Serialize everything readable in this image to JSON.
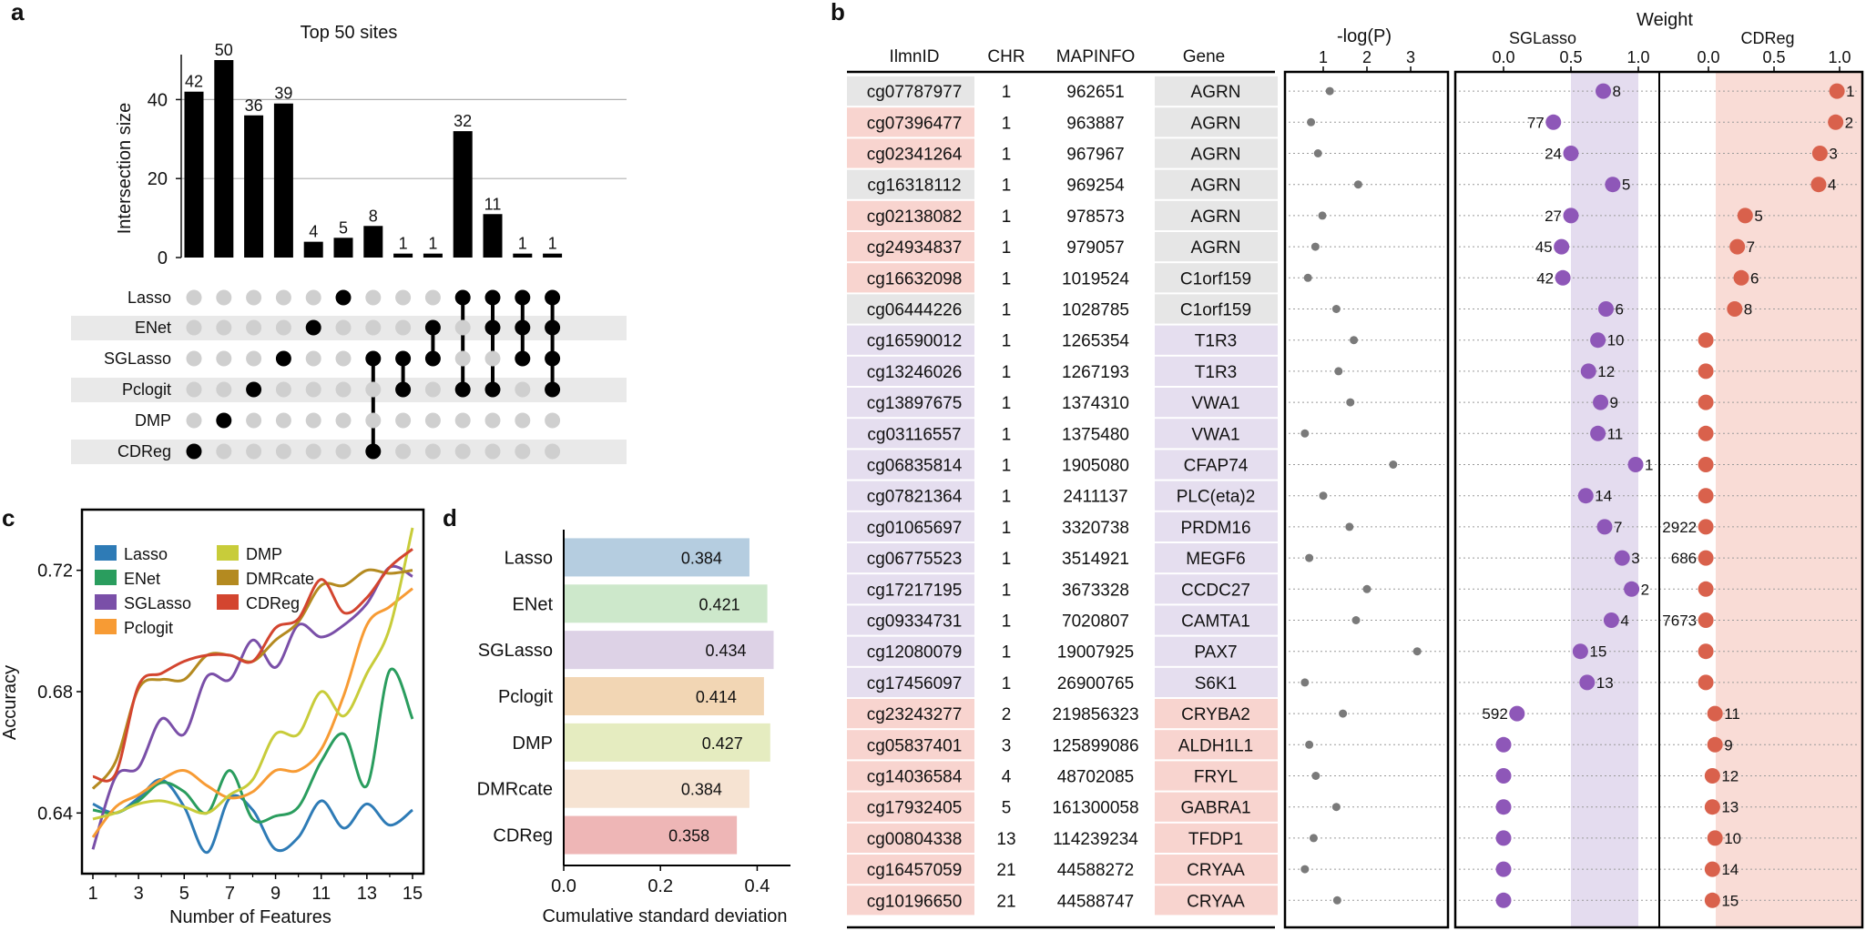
{
  "panels": {
    "a": "a",
    "b": "b",
    "c": "c",
    "d": "d"
  },
  "colors": {
    "lasso": "#2e7bb6",
    "enet": "#2a9d5e",
    "sglasso": "#7a4fa8",
    "pclogit": "#f79b34",
    "dmp": "#c8cc3a",
    "dmrcate": "#b48a20",
    "cdreg": "#d3452f",
    "dot_gray": "#7a7a7a",
    "sg_dot": "#8e57b8",
    "cd_dot": "#d9614c",
    "band_sg": "#e4dcef",
    "band_cd": "#f9dcd6",
    "row_pink": "#f8d4cf",
    "row_gray": "#e6e6e6",
    "row_purple": "#e5deef"
  },
  "chart_data": [
    {
      "type": "bar",
      "panel": "a",
      "title": "Top 50 sites",
      "ylabel": "Intersection size",
      "ylim": [
        0,
        50
      ],
      "yticks": [
        0,
        20,
        40
      ],
      "values": [
        42,
        50,
        36,
        39,
        4,
        5,
        8,
        1,
        1,
        32,
        11,
        1,
        1
      ],
      "sets": [
        "Lasso",
        "ENet",
        "SGLasso",
        "Pclogit",
        "DMP",
        "CDReg"
      ],
      "membership": [
        [
          "CDReg"
        ],
        [
          "DMP"
        ],
        [
          "Pclogit"
        ],
        [
          "SGLasso"
        ],
        [
          "ENet"
        ],
        [
          "Lasso"
        ],
        [
          "SGLasso",
          "CDReg"
        ],
        [
          "SGLasso",
          "Pclogit"
        ],
        [
          "ENet",
          "SGLasso"
        ],
        [
          "Lasso",
          "Pclogit"
        ],
        [
          "Lasso",
          "ENet",
          "Pclogit"
        ],
        [
          "Lasso",
          "ENet",
          "SGLasso"
        ],
        [
          "Lasso",
          "ENet",
          "SGLasso",
          "Pclogit"
        ]
      ]
    },
    {
      "type": "line",
      "panel": "c",
      "xlabel": "Number of Features",
      "ylabel": "Accuracy",
      "xlim": [
        1,
        15
      ],
      "ylim": [
        0.62,
        0.74
      ],
      "xticks": [
        1,
        3,
        5,
        7,
        9,
        11,
        13,
        15
      ],
      "yticks": [
        0.64,
        0.68,
        0.72
      ],
      "series": [
        {
          "name": "Lasso",
          "color_key": "lasso",
          "x": [
            1,
            2,
            3,
            4,
            5,
            6,
            7,
            8,
            9,
            10,
            11,
            12,
            13,
            14,
            15
          ],
          "y": [
            0.643,
            0.64,
            0.645,
            0.651,
            0.642,
            0.627,
            0.645,
            0.641,
            0.628,
            0.632,
            0.644,
            0.635,
            0.643,
            0.636,
            0.641
          ]
        },
        {
          "name": "ENet",
          "color_key": "enet",
          "x": [
            1,
            2,
            3,
            4,
            5,
            6,
            7,
            8,
            9,
            10,
            11,
            12,
            13,
            14,
            15
          ],
          "y": [
            0.641,
            0.64,
            0.644,
            0.65,
            0.647,
            0.64,
            0.654,
            0.638,
            0.639,
            0.642,
            0.657,
            0.666,
            0.649,
            0.687,
            0.671
          ]
        },
        {
          "name": "SGLasso",
          "color_key": "sglasso",
          "x": [
            1,
            2,
            3,
            4,
            5,
            6,
            7,
            8,
            9,
            10,
            11,
            12,
            13,
            14,
            15
          ],
          "y": [
            0.628,
            0.652,
            0.655,
            0.671,
            0.666,
            0.685,
            0.684,
            0.697,
            0.688,
            0.702,
            0.698,
            0.702,
            0.709,
            0.721,
            0.718
          ]
        },
        {
          "name": "Pclogit",
          "color_key": "pclogit",
          "x": [
            1,
            2,
            3,
            4,
            5,
            6,
            7,
            8,
            9,
            10,
            11,
            12,
            13,
            14,
            15
          ],
          "y": [
            0.632,
            0.642,
            0.646,
            0.651,
            0.654,
            0.649,
            0.645,
            0.647,
            0.654,
            0.654,
            0.661,
            0.679,
            0.702,
            0.708,
            0.714
          ]
        },
        {
          "name": "DMP",
          "color_key": "dmp",
          "x": [
            1,
            2,
            3,
            4,
            5,
            6,
            7,
            8,
            9,
            10,
            11,
            12,
            13,
            14,
            15
          ],
          "y": [
            0.638,
            0.64,
            0.643,
            0.644,
            0.642,
            0.64,
            0.646,
            0.651,
            0.666,
            0.666,
            0.68,
            0.672,
            0.686,
            0.701,
            0.734
          ]
        },
        {
          "name": "DMRcate",
          "color_key": "dmrcate",
          "x": [
            1,
            2,
            3,
            4,
            5,
            6,
            7,
            8,
            9,
            10,
            11,
            12,
            13,
            14,
            15
          ],
          "y": [
            0.648,
            0.657,
            0.681,
            0.684,
            0.684,
            0.692,
            0.692,
            0.69,
            0.697,
            0.703,
            0.715,
            0.715,
            0.72,
            0.719,
            0.72
          ]
        },
        {
          "name": "CDReg",
          "color_key": "cdreg",
          "x": [
            1,
            2,
            3,
            4,
            5,
            6,
            7,
            8,
            9,
            10,
            11,
            12,
            13,
            14,
            15
          ],
          "y": [
            0.652,
            0.653,
            0.682,
            0.686,
            0.69,
            0.692,
            0.692,
            0.69,
            0.701,
            0.704,
            0.717,
            0.706,
            0.711,
            0.721,
            0.727
          ]
        }
      ]
    },
    {
      "type": "bar",
      "panel": "d",
      "orientation": "horizontal",
      "xlabel": "Cumulative standard deviation",
      "xlim": [
        0,
        0.45
      ],
      "xticks": [
        "0.0",
        "0.2",
        "0.4"
      ],
      "categories": [
        "Lasso",
        "ENet",
        "SGLasso",
        "Pclogit",
        "DMP",
        "DMRcate",
        "CDReg"
      ],
      "values": [
        0.384,
        0.421,
        0.434,
        0.414,
        0.427,
        0.384,
        0.358
      ],
      "labels": [
        "0.384",
        "0.421",
        "0.434",
        "0.414",
        "0.427",
        "0.384",
        "0.358"
      ],
      "bar_colors": [
        "#b5cde0",
        "#cde8cb",
        "#ddd2e6",
        "#f2d6b4",
        "#e5ecc0",
        "#f6e3d2",
        "#eeb6b6"
      ]
    },
    {
      "type": "table",
      "panel": "b",
      "columns": [
        "IlmnID",
        "CHR",
        "MAPINFO",
        "Gene"
      ],
      "plot_headers": {
        "logp": "-log(P)",
        "weight": "Weight",
        "sglasso": "SGLasso",
        "cdreg": "CDReg"
      },
      "logp_ticks": [
        1,
        2,
        3
      ],
      "sg_ticks": [
        "0.0",
        "0.5",
        "1.0"
      ],
      "cd_ticks": [
        "0.0",
        "0.5",
        "1.0"
      ],
      "rows": [
        {
          "id": "cg07787977",
          "chr": "1",
          "map": "962651",
          "gene": "AGRN",
          "id_bg": "gray",
          "gene_bg": "gray",
          "logp": 1.15,
          "sg": 0.74,
          "sg_rank": "8",
          "sg_side": "right",
          "cd": 0.98,
          "cd_rank": "1",
          "cd_side": "right"
        },
        {
          "id": "cg07396477",
          "chr": "1",
          "map": "963887",
          "gene": "AGRN",
          "id_bg": "pink",
          "gene_bg": "gray",
          "logp": 0.72,
          "sg": 0.37,
          "sg_rank": "77",
          "sg_side": "left",
          "cd": 0.97,
          "cd_rank": "2",
          "cd_side": "right"
        },
        {
          "id": "cg02341264",
          "chr": "1",
          "map": "967967",
          "gene": "AGRN",
          "id_bg": "pink",
          "gene_bg": "gray",
          "logp": 0.88,
          "sg": 0.5,
          "sg_rank": "24",
          "sg_side": "left",
          "cd": 0.85,
          "cd_rank": "3",
          "cd_side": "right"
        },
        {
          "id": "cg16318112",
          "chr": "1",
          "map": "969254",
          "gene": "AGRN",
          "id_bg": "gray",
          "gene_bg": "gray",
          "logp": 1.8,
          "sg": 0.81,
          "sg_rank": "5",
          "sg_side": "right",
          "cd": 0.84,
          "cd_rank": "4",
          "cd_side": "right"
        },
        {
          "id": "cg02138082",
          "chr": "1",
          "map": "978573",
          "gene": "AGRN",
          "id_bg": "pink",
          "gene_bg": "gray",
          "logp": 0.98,
          "sg": 0.5,
          "sg_rank": "27",
          "sg_side": "left",
          "cd": 0.28,
          "cd_rank": "5",
          "cd_side": "right"
        },
        {
          "id": "cg24934837",
          "chr": "1",
          "map": "979057",
          "gene": "AGRN",
          "id_bg": "pink",
          "gene_bg": "gray",
          "logp": 0.82,
          "sg": 0.43,
          "sg_rank": "45",
          "sg_side": "left",
          "cd": 0.22,
          "cd_rank": "7",
          "cd_side": "right"
        },
        {
          "id": "cg16632098",
          "chr": "1",
          "map": "1019524",
          "gene": "C1orf159",
          "id_bg": "pink",
          "gene_bg": "gray",
          "logp": 0.65,
          "sg": 0.44,
          "sg_rank": "42",
          "sg_side": "left",
          "cd": 0.25,
          "cd_rank": "6",
          "cd_side": "right"
        },
        {
          "id": "cg06444226",
          "chr": "1",
          "map": "1028785",
          "gene": "C1orf159",
          "id_bg": "gray",
          "gene_bg": "gray",
          "logp": 1.3,
          "sg": 0.76,
          "sg_rank": "6",
          "sg_side": "right",
          "cd": 0.2,
          "cd_rank": "8",
          "cd_side": "right"
        },
        {
          "id": "cg16590012",
          "chr": "1",
          "map": "1265354",
          "gene": "T1R3",
          "id_bg": "purple",
          "gene_bg": "purple",
          "logp": 1.7,
          "sg": 0.7,
          "sg_rank": "10",
          "sg_side": "right",
          "cd": -0.02,
          "cd_rank": "",
          "cd_side": "right"
        },
        {
          "id": "cg13246026",
          "chr": "1",
          "map": "1267193",
          "gene": "T1R3",
          "id_bg": "purple",
          "gene_bg": "purple",
          "logp": 1.35,
          "sg": 0.63,
          "sg_rank": "12",
          "sg_side": "right",
          "cd": -0.02,
          "cd_rank": "",
          "cd_side": "right"
        },
        {
          "id": "cg13897675",
          "chr": "1",
          "map": "1374310",
          "gene": "VWA1",
          "id_bg": "purple",
          "gene_bg": "purple",
          "logp": 1.62,
          "sg": 0.72,
          "sg_rank": "9",
          "sg_side": "right",
          "cd": -0.02,
          "cd_rank": "",
          "cd_side": "right"
        },
        {
          "id": "cg03116557",
          "chr": "1",
          "map": "1375480",
          "gene": "VWA1",
          "id_bg": "purple",
          "gene_bg": "purple",
          "logp": 0.58,
          "sg": 0.7,
          "sg_rank": "11",
          "sg_side": "right",
          "cd": -0.02,
          "cd_rank": "",
          "cd_side": "right"
        },
        {
          "id": "cg06835814",
          "chr": "1",
          "map": "1905080",
          "gene": "CFAP74",
          "id_bg": "purple",
          "gene_bg": "purple",
          "logp": 2.6,
          "sg": 0.98,
          "sg_rank": "1",
          "sg_side": "right",
          "cd": -0.02,
          "cd_rank": "",
          "cd_side": "right"
        },
        {
          "id": "cg07821364",
          "chr": "1",
          "map": "2411137",
          "gene": "PLC(eta)2",
          "id_bg": "purple",
          "gene_bg": "purple",
          "logp": 1.0,
          "sg": 0.61,
          "sg_rank": "14",
          "sg_side": "right",
          "cd": -0.02,
          "cd_rank": "",
          "cd_side": "right"
        },
        {
          "id": "cg01065697",
          "chr": "1",
          "map": "3320738",
          "gene": "PRDM16",
          "id_bg": "purple",
          "gene_bg": "purple",
          "logp": 1.6,
          "sg": 0.75,
          "sg_rank": "7",
          "sg_side": "right",
          "cd": -0.02,
          "cd_rank": "2922",
          "cd_side": "left"
        },
        {
          "id": "cg06775523",
          "chr": "1",
          "map": "3514921",
          "gene": "MEGF6",
          "id_bg": "purple",
          "gene_bg": "purple",
          "logp": 0.68,
          "sg": 0.88,
          "sg_rank": "3",
          "sg_side": "right",
          "cd": -0.02,
          "cd_rank": "686",
          "cd_side": "left"
        },
        {
          "id": "cg17217195",
          "chr": "1",
          "map": "3673328",
          "gene": "CCDC27",
          "id_bg": "purple",
          "gene_bg": "purple",
          "logp": 2.0,
          "sg": 0.95,
          "sg_rank": "2",
          "sg_side": "right",
          "cd": -0.02,
          "cd_rank": "",
          "cd_side": "right"
        },
        {
          "id": "cg09334731",
          "chr": "1",
          "map": "7020807",
          "gene": "CAMTA1",
          "id_bg": "purple",
          "gene_bg": "purple",
          "logp": 1.75,
          "sg": 0.8,
          "sg_rank": "4",
          "sg_side": "right",
          "cd": -0.02,
          "cd_rank": "7673",
          "cd_side": "left"
        },
        {
          "id": "cg12080079",
          "chr": "1",
          "map": "19007925",
          "gene": "PAX7",
          "id_bg": "purple",
          "gene_bg": "purple",
          "logp": 3.15,
          "sg": 0.57,
          "sg_rank": "15",
          "sg_side": "right",
          "cd": -0.02,
          "cd_rank": "",
          "cd_side": "right"
        },
        {
          "id": "cg17456097",
          "chr": "1",
          "map": "26900765",
          "gene": "S6K1",
          "id_bg": "purple",
          "gene_bg": "purple",
          "logp": 0.58,
          "sg": 0.62,
          "sg_rank": "13",
          "sg_side": "right",
          "cd": -0.02,
          "cd_rank": "",
          "cd_side": "right"
        },
        {
          "id": "cg23243277",
          "chr": "2",
          "map": "219856323",
          "gene": "CRYBA2",
          "id_bg": "pink",
          "gene_bg": "pink",
          "logp": 1.45,
          "sg": 0.1,
          "sg_rank": "592",
          "sg_side": "left",
          "cd": 0.05,
          "cd_rank": "11",
          "cd_side": "right"
        },
        {
          "id": "cg05837401",
          "chr": "3",
          "map": "125899086",
          "gene": "ALDH1L1",
          "id_bg": "pink",
          "gene_bg": "pink",
          "logp": 0.68,
          "sg": 0.0,
          "sg_rank": "",
          "sg_side": "right",
          "cd": 0.05,
          "cd_rank": "9",
          "cd_side": "right"
        },
        {
          "id": "cg14036584",
          "chr": "4",
          "map": "48702085",
          "gene": "FRYL",
          "id_bg": "pink",
          "gene_bg": "pink",
          "logp": 0.83,
          "sg": 0.0,
          "sg_rank": "",
          "sg_side": "right",
          "cd": 0.03,
          "cd_rank": "12",
          "cd_side": "right"
        },
        {
          "id": "cg17932405",
          "chr": "5",
          "map": "161300058",
          "gene": "GABRA1",
          "id_bg": "pink",
          "gene_bg": "pink",
          "logp": 1.3,
          "sg": 0.0,
          "sg_rank": "",
          "sg_side": "right",
          "cd": 0.03,
          "cd_rank": "13",
          "cd_side": "right"
        },
        {
          "id": "cg00804338",
          "chr": "13",
          "map": "114239234",
          "gene": "TFDP1",
          "id_bg": "pink",
          "gene_bg": "pink",
          "logp": 0.78,
          "sg": 0.0,
          "sg_rank": "",
          "sg_side": "right",
          "cd": 0.05,
          "cd_rank": "10",
          "cd_side": "right"
        },
        {
          "id": "cg16457059",
          "chr": "21",
          "map": "44588272",
          "gene": "CRYAA",
          "id_bg": "pink",
          "gene_bg": "pink",
          "logp": 0.58,
          "sg": 0.0,
          "sg_rank": "",
          "sg_side": "right",
          "cd": 0.03,
          "cd_rank": "14",
          "cd_side": "right"
        },
        {
          "id": "cg10196650",
          "chr": "21",
          "map": "44588747",
          "gene": "CRYAA",
          "id_bg": "pink",
          "gene_bg": "pink",
          "logp": 1.32,
          "sg": 0.0,
          "sg_rank": "",
          "sg_side": "right",
          "cd": 0.03,
          "cd_rank": "15",
          "cd_side": "right"
        }
      ]
    }
  ]
}
